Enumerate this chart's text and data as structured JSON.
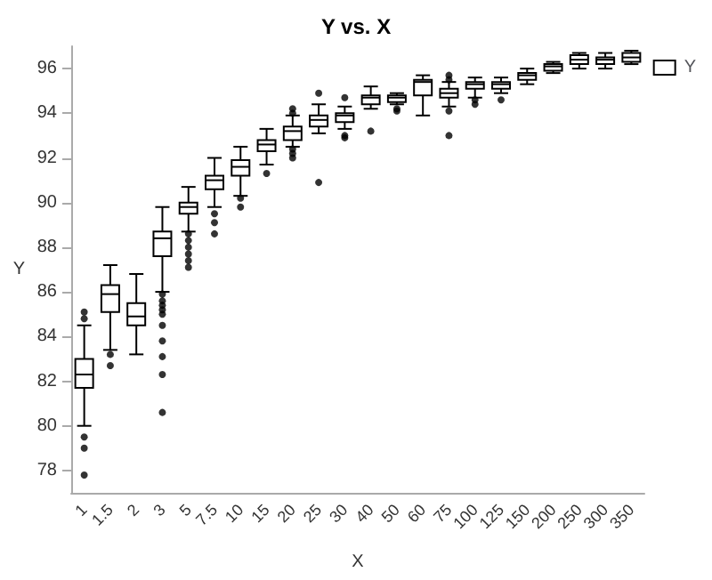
{
  "chart_data": {
    "type": "box",
    "title": "Y vs. X",
    "xlabel": "X",
    "ylabel": "Y",
    "categories": [
      "1",
      "1.5",
      "2",
      "3",
      "5",
      "7.5",
      "10",
      "15",
      "20",
      "25",
      "30",
      "40",
      "50",
      "60",
      "75",
      "100",
      "125",
      "150",
      "200",
      "250",
      "300",
      "350"
    ],
    "ylim": [
      77,
      97
    ],
    "yticks": [
      78,
      80,
      82,
      84,
      86,
      88,
      90,
      92,
      94,
      96
    ],
    "grid": false,
    "legend": "right",
    "marker": "circle",
    "series": [
      {
        "name": "Y",
        "color": "#000000",
        "boxes": [
          {
            "low": 80.0,
            "q1": 81.7,
            "median": 82.3,
            "q3": 83.0,
            "high": 84.5,
            "outliers": [
              85.1,
              84.8,
              79.5,
              79.0,
              77.8
            ]
          },
          {
            "low": 83.4,
            "q1": 85.1,
            "median": 85.9,
            "q3": 86.3,
            "high": 87.2,
            "outliers": [
              83.2,
              82.7
            ]
          },
          {
            "low": 83.2,
            "q1": 84.5,
            "median": 84.9,
            "q3": 85.5,
            "high": 86.8
          },
          {
            "low": 86.0,
            "q1": 87.6,
            "median": 88.4,
            "q3": 88.7,
            "high": 89.8,
            "outliers": [
              85.9,
              85.6,
              85.4,
              85.2,
              85.0,
              84.5,
              83.8,
              83.1,
              82.3,
              80.6
            ]
          },
          {
            "low": 88.7,
            "q1": 89.5,
            "median": 89.8,
            "q3": 90.0,
            "high": 90.7,
            "outliers": [
              88.6,
              88.3,
              88.0,
              87.7,
              87.4,
              87.1
            ]
          },
          {
            "low": 89.8,
            "q1": 90.6,
            "median": 91.0,
            "q3": 91.2,
            "high": 92.0,
            "outliers": [
              89.5,
              89.1,
              88.6
            ]
          },
          {
            "low": 90.3,
            "q1": 91.2,
            "median": 91.6,
            "q3": 91.9,
            "high": 92.5,
            "outliers": [
              90.2,
              89.8
            ]
          },
          {
            "low": 91.7,
            "q1": 92.3,
            "median": 92.6,
            "q3": 92.8,
            "high": 93.3,
            "outliers": [
              91.3
            ]
          },
          {
            "low": 92.5,
            "q1": 92.8,
            "median": 93.2,
            "q3": 93.4,
            "high": 93.9,
            "outliers": [
              94.2,
              94.0,
              92.4,
              92.2,
              92.0
            ]
          },
          {
            "low": 93.1,
            "q1": 93.4,
            "median": 93.7,
            "q3": 93.9,
            "high": 94.4,
            "outliers": [
              94.9,
              90.9
            ]
          },
          {
            "low": 93.3,
            "q1": 93.6,
            "median": 93.9,
            "q3": 94.0,
            "high": 94.3,
            "outliers": [
              94.7,
              93.0,
              92.9
            ]
          },
          {
            "low": 94.2,
            "q1": 94.4,
            "median": 94.7,
            "q3": 94.8,
            "high": 95.2,
            "outliers": [
              93.2
            ]
          },
          {
            "low": 94.4,
            "q1": 94.5,
            "median": 94.7,
            "q3": 94.8,
            "high": 94.9,
            "outliers": [
              94.2,
              94.1
            ]
          },
          {
            "low": 93.9,
            "q1": 94.8,
            "median": 95.4,
            "q3": 95.5,
            "high": 95.7
          },
          {
            "low": 94.3,
            "q1": 94.7,
            "median": 94.9,
            "q3": 95.1,
            "high": 95.4,
            "outliers": [
              95.7,
              95.5,
              94.1,
              93.0
            ]
          },
          {
            "low": 94.7,
            "q1": 95.1,
            "median": 95.3,
            "q3": 95.4,
            "high": 95.6,
            "outliers": [
              94.6,
              94.4
            ]
          },
          {
            "low": 94.9,
            "q1": 95.1,
            "median": 95.3,
            "q3": 95.4,
            "high": 95.6,
            "outliers": [
              94.6
            ]
          },
          {
            "low": 95.3,
            "q1": 95.5,
            "median": 95.7,
            "q3": 95.8,
            "high": 96.0
          },
          {
            "low": 95.8,
            "q1": 95.9,
            "median": 96.1,
            "q3": 96.2,
            "high": 96.3
          },
          {
            "low": 96.0,
            "q1": 96.2,
            "median": 96.4,
            "q3": 96.6,
            "high": 96.7
          },
          {
            "low": 96.0,
            "q1": 96.2,
            "median": 96.4,
            "q3": 96.5,
            "high": 96.7
          },
          {
            "low": 96.2,
            "q1": 96.3,
            "median": 96.5,
            "q3": 96.7,
            "high": 96.8
          }
        ]
      }
    ]
  }
}
